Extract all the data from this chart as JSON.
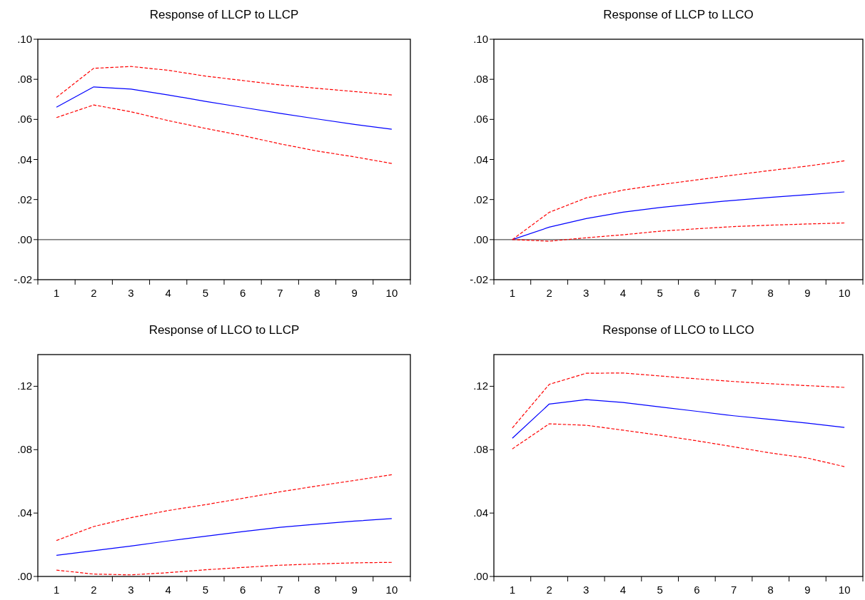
{
  "chart_data": [
    {
      "type": "line",
      "title": "Response of LLCP to LLCP",
      "categories": [
        "1",
        "2",
        "3",
        "4",
        "5",
        "6",
        "7",
        "8",
        "9",
        "10"
      ],
      "ylim": [
        -0.02,
        0.1
      ],
      "yticks": [
        {
          "value": -0.02,
          "label": "-.02"
        },
        {
          "value": 0,
          "label": ".00"
        },
        {
          "value": 0.02,
          "label": ".02"
        },
        {
          "value": 0.04,
          "label": ".04"
        },
        {
          "value": 0.06,
          "label": ".06"
        },
        {
          "value": 0.08,
          "label": ".08"
        },
        {
          "value": 0.1,
          "label": ".10"
        }
      ],
      "ref_lines": [
        {
          "axis": "y",
          "value": 0,
          "color": "#555555"
        }
      ],
      "series": [
        {
          "color": "#0000ff",
          "line_style": "solid",
          "values": [
            0.0661,
            0.0762,
            0.0751,
            0.0722,
            0.069,
            0.066,
            0.063,
            0.0602,
            0.0575,
            0.0551
          ]
        },
        {
          "color": "#ff0000",
          "line_style": "dashed",
          "values": [
            0.071,
            0.0855,
            0.0864,
            0.0845,
            0.0816,
            0.0794,
            0.0772,
            0.0755,
            0.0739,
            0.0722
          ]
        },
        {
          "color": "#ff0000",
          "line_style": "dashed",
          "values": [
            0.0609,
            0.0672,
            0.0638,
            0.0594,
            0.0555,
            0.0519,
            0.0478,
            0.0442,
            0.0413,
            0.038
          ]
        }
      ]
    },
    {
      "type": "line",
      "title": "Response of LLCP to LLCO",
      "categories": [
        "1",
        "2",
        "3",
        "4",
        "5",
        "6",
        "7",
        "8",
        "9",
        "10"
      ],
      "ylim": [
        -0.02,
        0.1
      ],
      "yticks": [
        {
          "value": -0.02,
          "label": "-.02"
        },
        {
          "value": 0,
          "label": ".00"
        },
        {
          "value": 0.02,
          "label": ".02"
        },
        {
          "value": 0.04,
          "label": ".04"
        },
        {
          "value": 0.06,
          "label": ".06"
        },
        {
          "value": 0.08,
          "label": ".08"
        },
        {
          "value": 0.1,
          "label": ".10"
        }
      ],
      "ref_lines": [
        {
          "axis": "y",
          "value": 0,
          "color": "#555555"
        }
      ],
      "series": [
        {
          "color": "#0000ff",
          "line_style": "solid",
          "values": [
            0,
            0.0062,
            0.0105,
            0.0137,
            0.016,
            0.0179,
            0.0196,
            0.0211,
            0.0224,
            0.0238
          ]
        },
        {
          "color": "#ff0000",
          "line_style": "dashed",
          "values": [
            0,
            0.0136,
            0.0208,
            0.0247,
            0.0274,
            0.0298,
            0.0322,
            0.0345,
            0.0367,
            0.0393
          ]
        },
        {
          "color": "#ff0000",
          "line_style": "dashed",
          "values": [
            0,
            -0.0008,
            0.0009,
            0.0024,
            0.0042,
            0.0054,
            0.0065,
            0.0072,
            0.0078,
            0.0083
          ]
        }
      ]
    },
    {
      "type": "line",
      "title": "Response of LLCO to LLCP",
      "categories": [
        "1",
        "2",
        "3",
        "4",
        "5",
        "6",
        "7",
        "8",
        "9",
        "10"
      ],
      "ylim": [
        0,
        0.14
      ],
      "yticks": [
        {
          "value": 0,
          "label": ".00"
        },
        {
          "value": 0.04,
          "label": ".04"
        },
        {
          "value": 0.08,
          "label": ".08"
        },
        {
          "value": 0.12,
          "label": ".12"
        }
      ],
      "series": [
        {
          "color": "#0000ff",
          "line_style": "solid",
          "values": [
            0.0133,
            0.0163,
            0.0192,
            0.0224,
            0.0254,
            0.0283,
            0.031,
            0.033,
            0.0349,
            0.0365
          ]
        },
        {
          "color": "#ff0000",
          "line_style": "dashed",
          "values": [
            0.0227,
            0.0315,
            0.0371,
            0.0416,
            0.0453,
            0.0493,
            0.0534,
            0.0571,
            0.0606,
            0.0642
          ]
        },
        {
          "color": "#ff0000",
          "line_style": "dashed",
          "values": [
            0.004,
            0.0015,
            0.001,
            0.0024,
            0.0042,
            0.0057,
            0.0071,
            0.0079,
            0.0086,
            0.0089
          ]
        }
      ]
    },
    {
      "type": "line",
      "title": "Response of LLCO to LLCO",
      "categories": [
        "1",
        "2",
        "3",
        "4",
        "5",
        "6",
        "7",
        "8",
        "9",
        "10"
      ],
      "ylim": [
        0,
        0.14
      ],
      "yticks": [
        {
          "value": 0,
          "label": ".00"
        },
        {
          "value": 0.04,
          "label": ".04"
        },
        {
          "value": 0.08,
          "label": ".08"
        },
        {
          "value": 0.12,
          "label": ".12"
        }
      ],
      "series": [
        {
          "color": "#0000ff",
          "line_style": "solid",
          "values": [
            0.0872,
            0.1088,
            0.1116,
            0.1098,
            0.107,
            0.1042,
            0.1014,
            0.0991,
            0.0967,
            0.094
          ]
        },
        {
          "color": "#ff0000",
          "line_style": "dashed",
          "values": [
            0.0937,
            0.1212,
            0.1282,
            0.1284,
            0.1265,
            0.1247,
            0.123,
            0.1216,
            0.1204,
            0.1193
          ]
        },
        {
          "color": "#ff0000",
          "line_style": "dashed",
          "values": [
            0.0805,
            0.0963,
            0.0954,
            0.0923,
            0.0891,
            0.0856,
            0.0818,
            0.0779,
            0.0747,
            0.0693
          ]
        }
      ]
    }
  ]
}
